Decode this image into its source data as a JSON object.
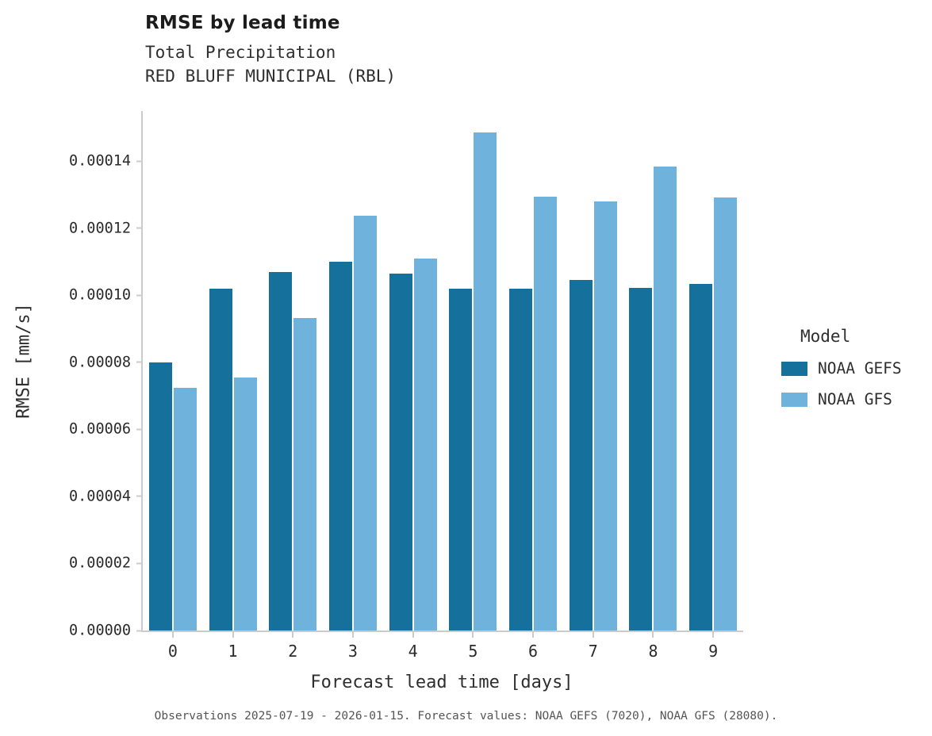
{
  "chart_data": {
    "type": "bar",
    "title": "RMSE by lead time",
    "subtitle_lines": [
      "Total Precipitation",
      "RED BLUFF MUNICIPAL (RBL)"
    ],
    "xlabel": "Forecast lead time [days]",
    "ylabel": "RMSE [mm/s]",
    "legend_title": "Model",
    "categories": [
      "0",
      "1",
      "2",
      "3",
      "4",
      "5",
      "6",
      "7",
      "8",
      "9"
    ],
    "series": [
      {
        "name": "NOAA GEFS",
        "color": "#16709c",
        "values": [
          8e-05,
          0.000102,
          0.000107,
          0.00011,
          0.0001065,
          0.000102,
          0.000102,
          0.0001045,
          0.0001022,
          0.0001035
        ]
      },
      {
        "name": "NOAA GFS",
        "color": "#6fb3dc",
        "values": [
          7.25e-05,
          7.55e-05,
          9.32e-05,
          0.0001238,
          0.000111,
          0.0001485,
          0.0001295,
          0.000128,
          0.0001385,
          0.0001292
        ]
      }
    ],
    "yticks": [
      "0.00000",
      "0.00002",
      "0.00004",
      "0.00006",
      "0.00008",
      "0.00010",
      "0.00012",
      "0.00014"
    ],
    "ytick_values": [
      0,
      2e-05,
      4e-05,
      6e-05,
      8e-05,
      0.0001,
      0.00012,
      0.00014
    ],
    "ylim": [
      0,
      0.000155
    ],
    "grid": false,
    "legend_position": "right",
    "caption": "Observations 2025-07-19 - 2026-01-15. Forecast values: NOAA GEFS (7020), NOAA GFS (28080)."
  }
}
